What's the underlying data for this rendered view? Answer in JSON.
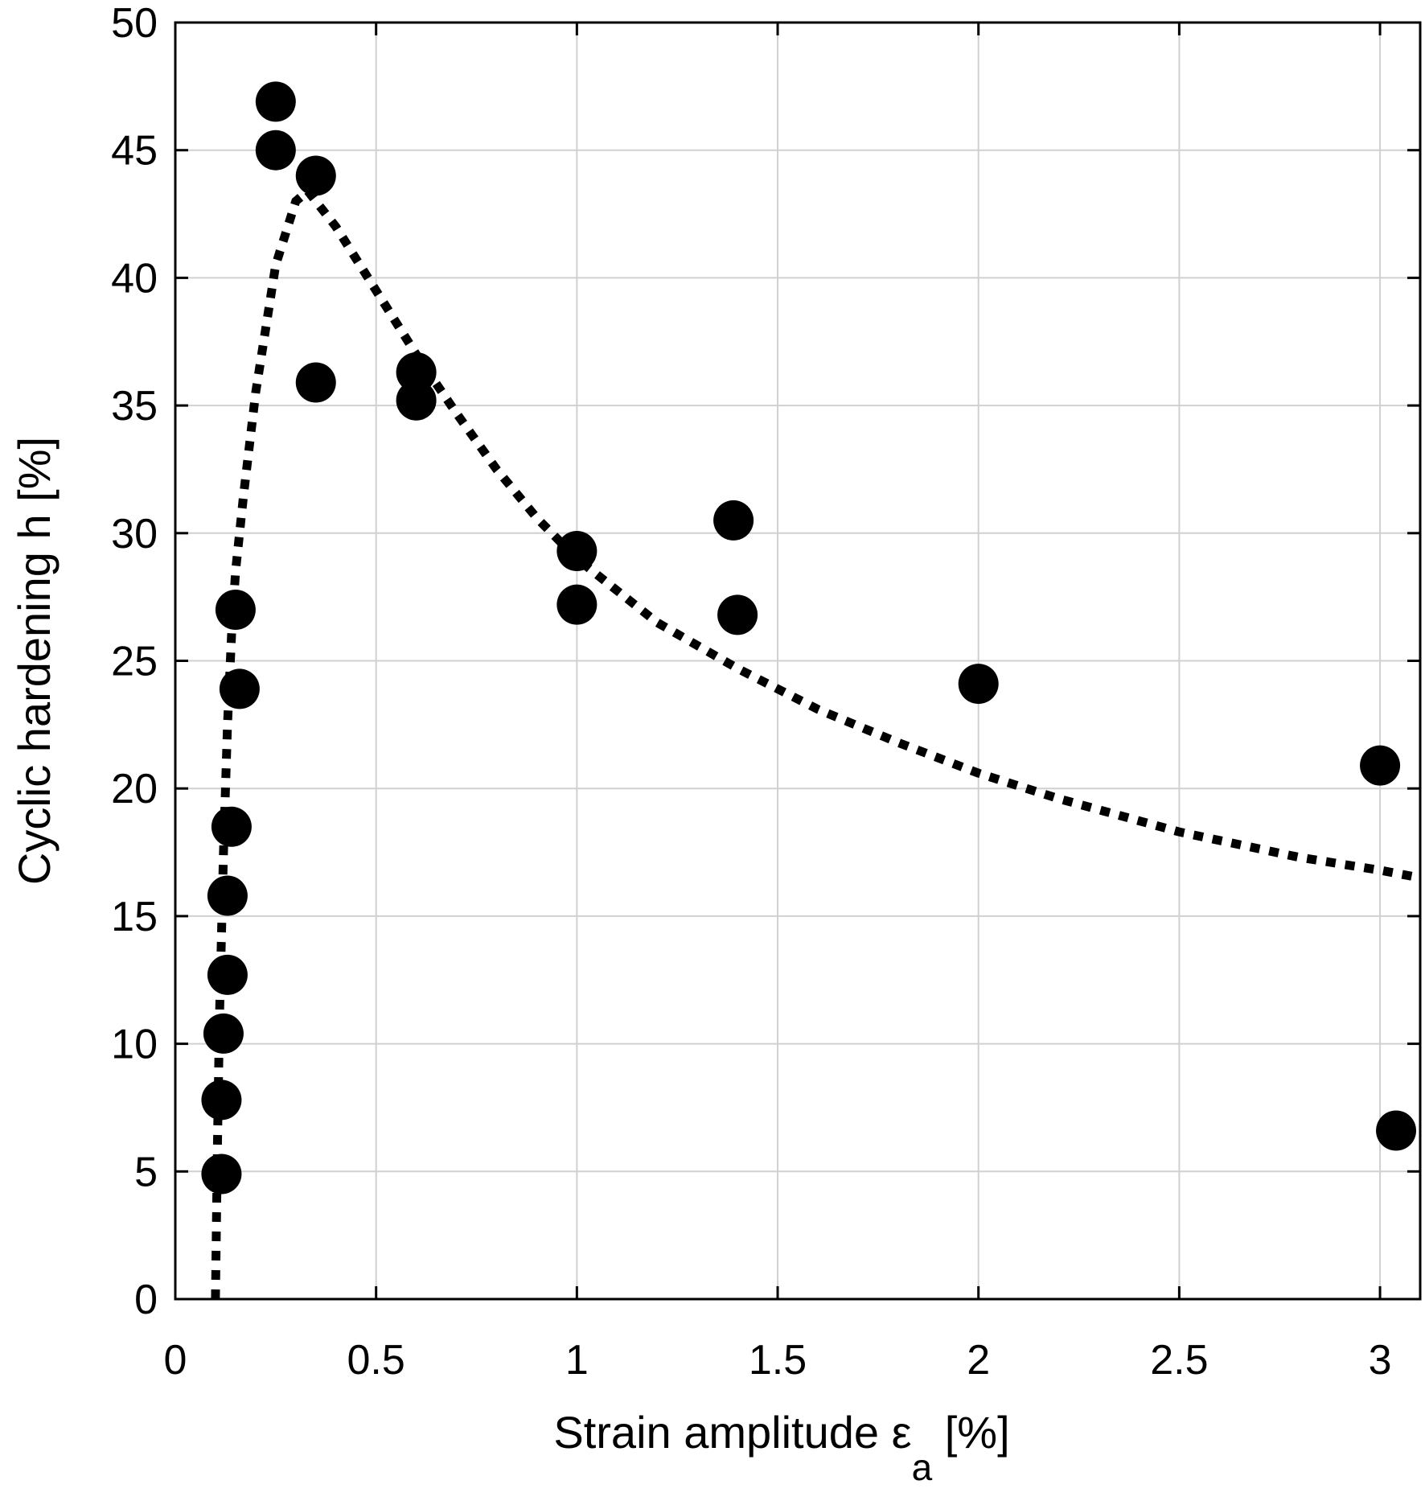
{
  "chart_data": {
    "type": "scatter",
    "title": "",
    "xlabel": "Strain amplitude ε",
    "xlabel_subscript": "a",
    "xlabel_unit": " [%]",
    "ylabel": "Cyclic hardening h [%]",
    "xlim": [
      0,
      3.1
    ],
    "ylim": [
      0,
      50
    ],
    "xticks": [
      0,
      0.5,
      1,
      1.5,
      2,
      2.5,
      3
    ],
    "xtick_labels": [
      "0",
      "0.5",
      "1",
      "1.5",
      "2",
      "2.5",
      "3"
    ],
    "yticks": [
      0,
      5,
      10,
      15,
      20,
      25,
      30,
      35,
      40,
      45,
      50
    ],
    "ytick_labels": [
      "0",
      "5",
      "10",
      "15",
      "20",
      "25",
      "30",
      "35",
      "40",
      "45",
      "50"
    ],
    "grid": true,
    "marker_color": "#000000",
    "points": [
      {
        "x": 0.25,
        "y": 46.9
      },
      {
        "x": 0.25,
        "y": 45.0
      },
      {
        "x": 0.35,
        "y": 44.0
      },
      {
        "x": 0.35,
        "y": 35.9
      },
      {
        "x": 0.6,
        "y": 36.3
      },
      {
        "x": 0.6,
        "y": 35.2
      },
      {
        "x": 1.0,
        "y": 29.3
      },
      {
        "x": 1.0,
        "y": 27.2
      },
      {
        "x": 1.39,
        "y": 30.5
      },
      {
        "x": 1.4,
        "y": 26.8
      },
      {
        "x": 2.0,
        "y": 24.1
      },
      {
        "x": 3.0,
        "y": 20.9
      },
      {
        "x": 3.04,
        "y": 6.6
      },
      {
        "x": 0.15,
        "y": 27.0
      },
      {
        "x": 0.16,
        "y": 23.9
      },
      {
        "x": 0.14,
        "y": 18.5
      },
      {
        "x": 0.13,
        "y": 15.8
      },
      {
        "x": 0.13,
        "y": 12.7
      },
      {
        "x": 0.12,
        "y": 10.4
      },
      {
        "x": 0.115,
        "y": 7.8
      },
      {
        "x": 0.115,
        "y": 4.9
      }
    ],
    "fit_curve": {
      "style": "dotted",
      "x": [
        0.1,
        0.105,
        0.11,
        0.12,
        0.13,
        0.14,
        0.15,
        0.17,
        0.2,
        0.25,
        0.3,
        0.33,
        0.4,
        0.5,
        0.6,
        0.7,
        0.8,
        0.9,
        1.0,
        1.2,
        1.4,
        1.6,
        1.8,
        2.0,
        2.2,
        2.5,
        2.8,
        3.0,
        3.1
      ],
      "y": [
        0,
        6,
        11,
        17.5,
        22.5,
        26,
        28.5,
        31.5,
        35.5,
        40.5,
        43.0,
        43.4,
        42.0,
        39.5,
        37.0,
        34.7,
        32.5,
        30.6,
        29.0,
        26.5,
        24.7,
        23.1,
        21.8,
        20.6,
        19.6,
        18.3,
        17.3,
        16.8,
        16.5
      ]
    }
  }
}
